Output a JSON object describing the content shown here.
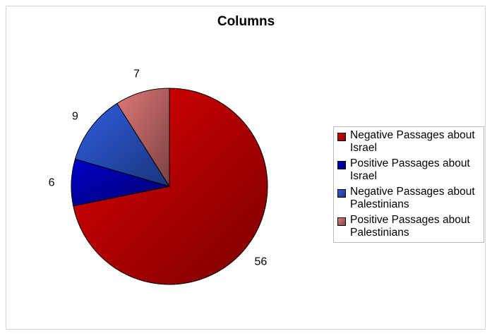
{
  "chart_data": {
    "type": "pie",
    "title": "Columns",
    "categories": [
      "Negative Passages about Israel",
      "Positive Passages about Israel",
      "Negative Passages about Palestinians",
      "Positive Passages about Palestinians"
    ],
    "values": [
      56,
      6,
      9,
      7
    ],
    "colors": [
      "#e00000",
      "#0000c8",
      "#2f5ee0",
      "#e07878"
    ],
    "data_labels": [
      "56",
      "6",
      "9",
      "7"
    ],
    "legend_position": "right",
    "start_angle": "12 o'clock",
    "direction": "clockwise"
  }
}
